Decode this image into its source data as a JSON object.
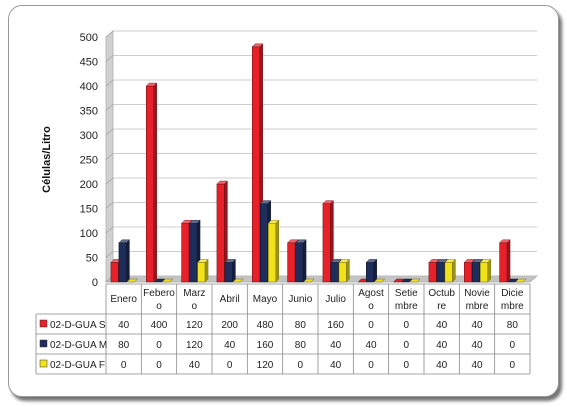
{
  "chart_data": {
    "type": "bar",
    "title": "",
    "ylabel": "Células/Litro",
    "xlabel": "",
    "ylim": [
      0,
      500
    ],
    "yticks": [
      0,
      50,
      100,
      150,
      200,
      250,
      300,
      350,
      400,
      450,
      500
    ],
    "categories": [
      "Enero",
      "Febero",
      "Marzo",
      "Abril",
      "Mayo",
      "Junio",
      "Julio",
      "Agosto",
      "Setiembre",
      "Octubre",
      "Noviembre",
      "Diciembre"
    ],
    "category_lines": [
      [
        "Enero"
      ],
      [
        "Febero",
        "o"
      ],
      [
        "Marz",
        "o"
      ],
      [
        "Abril"
      ],
      [
        "Mayo"
      ],
      [
        "Junio"
      ],
      [
        "Julio"
      ],
      [
        "Agost",
        "o"
      ],
      [
        "Setie",
        "mbre"
      ],
      [
        "Octub",
        "re"
      ],
      [
        "Novie",
        "mbre"
      ],
      [
        "Dicie",
        "mbre"
      ]
    ],
    "series": [
      {
        "name": "02-D-GUA S",
        "color": "#e8202a",
        "values": [
          40,
          400,
          120,
          200,
          480,
          80,
          160,
          0,
          0,
          40,
          40,
          80
        ]
      },
      {
        "name": "02-D-GUA M",
        "color": "#1f2d5c",
        "values": [
          80,
          0,
          120,
          40,
          160,
          80,
          40,
          40,
          0,
          40,
          40,
          0
        ]
      },
      {
        "name": "02-D-GUA F",
        "color": "#f2e21a",
        "values": [
          0,
          0,
          40,
          0,
          120,
          0,
          40,
          0,
          0,
          40,
          40,
          0
        ]
      }
    ],
    "grid": true,
    "legend": "data-table-left",
    "style": "3d-columns-with-data-table"
  }
}
